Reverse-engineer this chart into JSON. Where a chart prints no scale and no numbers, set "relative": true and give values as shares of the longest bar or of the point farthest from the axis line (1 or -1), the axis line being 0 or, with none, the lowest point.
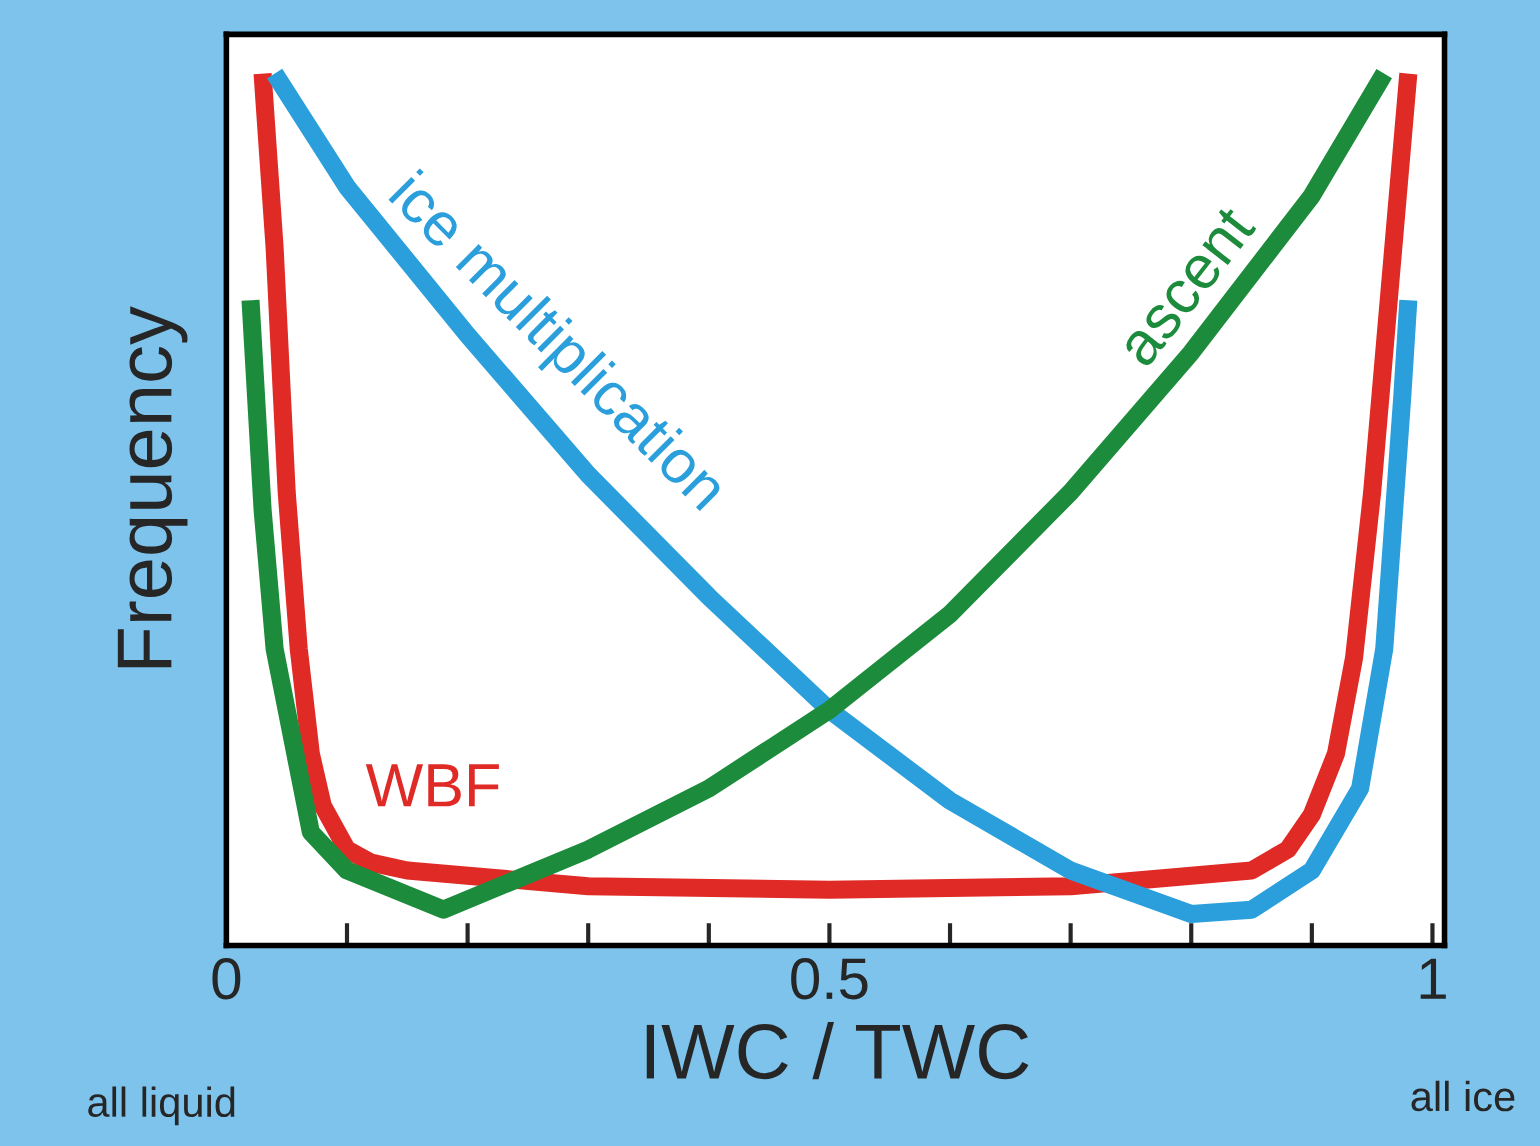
{
  "chart_data": {
    "type": "line",
    "relative": true,
    "xlabel": "IWC / TWC",
    "ylabel": "Frequency",
    "xlim": [
      0,
      1.01
    ],
    "xticks": [
      {
        "value": 0,
        "label": "0"
      },
      {
        "value": 0.1,
        "label": null
      },
      {
        "value": 0.2,
        "label": null
      },
      {
        "value": 0.3,
        "label": null
      },
      {
        "value": 0.4,
        "label": null
      },
      {
        "value": 0.5,
        "label": "0.5"
      },
      {
        "value": 0.6,
        "label": null
      },
      {
        "value": 0.7,
        "label": null
      },
      {
        "value": 0.8,
        "label": null
      },
      {
        "value": 0.9,
        "label": null
      },
      {
        "value": 1,
        "label": "1"
      }
    ],
    "grid": false,
    "legend": false,
    "marker": "none",
    "line_style": "solid",
    "series": [
      {
        "name": "WBF",
        "color": "#e02a26",
        "x": [
          0.03,
          0.035,
          0.04,
          0.05,
          0.06,
          0.07,
          0.08,
          0.1,
          0.12,
          0.15,
          0.3,
          0.5,
          0.7,
          0.85,
          0.88,
          0.9,
          0.92,
          0.935,
          0.95,
          0.96,
          0.97,
          0.98
        ],
        "values": [
          1.0,
          0.9,
          0.8,
          0.52,
          0.34,
          0.22,
          0.16,
          0.11,
          0.095,
          0.086,
          0.068,
          0.064,
          0.068,
          0.086,
          0.11,
          0.15,
          0.22,
          0.33,
          0.52,
          0.68,
          0.84,
          1.0
        ]
      },
      {
        "name": "ice multiplication",
        "color": "#2b9fdc",
        "x": [
          0.04,
          0.1,
          0.2,
          0.3,
          0.4,
          0.5,
          0.6,
          0.7,
          0.8,
          0.85,
          0.9,
          0.94,
          0.96,
          0.975,
          0.98
        ],
        "values": [
          1.0,
          0.87,
          0.7,
          0.54,
          0.4,
          0.27,
          0.166,
          0.086,
          0.036,
          0.041,
          0.086,
          0.18,
          0.34,
          0.63,
          0.74
        ]
      },
      {
        "name": "ascent",
        "color": "#1c8c3c",
        "x": [
          0.02,
          0.03,
          0.04,
          0.07,
          0.1,
          0.18,
          0.3,
          0.4,
          0.5,
          0.6,
          0.7,
          0.8,
          0.9,
          0.96
        ],
        "values": [
          0.74,
          0.5,
          0.34,
          0.13,
          0.086,
          0.041,
          0.11,
          0.18,
          0.27,
          0.38,
          0.52,
          0.68,
          0.86,
          1.0
        ]
      }
    ],
    "annotations": [
      "all liquid",
      "all ice"
    ]
  }
}
